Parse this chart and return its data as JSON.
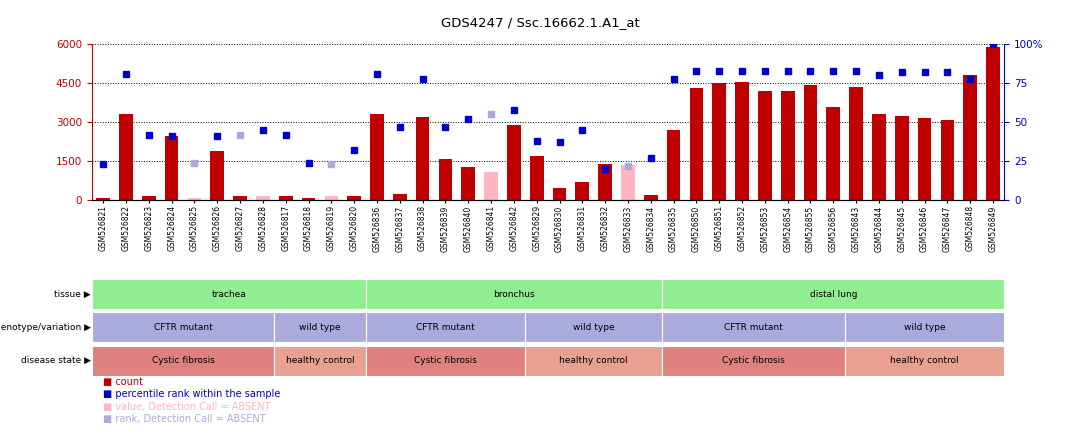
{
  "title": "GDS4247 / Ssc.16662.1.A1_at",
  "samples": [
    "GSM526821",
    "GSM526822",
    "GSM526823",
    "GSM526824",
    "GSM526825",
    "GSM526826",
    "GSM526827",
    "GSM526828",
    "GSM526817",
    "GSM526818",
    "GSM526819",
    "GSM526820",
    "GSM526836",
    "GSM526837",
    "GSM526838",
    "GSM526839",
    "GSM526840",
    "GSM526841",
    "GSM526842",
    "GSM526829",
    "GSM526830",
    "GSM526831",
    "GSM526832",
    "GSM526833",
    "GSM526834",
    "GSM526835",
    "GSM526850",
    "GSM526851",
    "GSM526852",
    "GSM526853",
    "GSM526854",
    "GSM526855",
    "GSM526856",
    "GSM526843",
    "GSM526844",
    "GSM526845",
    "GSM526846",
    "GSM526847",
    "GSM526848",
    "GSM526849"
  ],
  "counts": [
    60,
    3300,
    130,
    2450,
    60,
    1900,
    130,
    160,
    130,
    60,
    140,
    160,
    3300,
    230,
    3200,
    1560,
    1280,
    1060,
    2900,
    1700,
    450,
    700,
    1370,
    1350,
    200,
    2700,
    4300,
    4500,
    4550,
    4200,
    4200,
    4450,
    3600,
    4350,
    3300,
    3250,
    3150,
    3100,
    4800,
    5900
  ],
  "ranks_pct": [
    23,
    81,
    42,
    41,
    24,
    41,
    42,
    45,
    42,
    24,
    23,
    32,
    81,
    47,
    78,
    47,
    52,
    55,
    58,
    38,
    37,
    45,
    20,
    22,
    27,
    78,
    83,
    83,
    83,
    83,
    83,
    83,
    83,
    83,
    80,
    82,
    82,
    82,
    78,
    100
  ],
  "absent_count": [
    false,
    false,
    false,
    false,
    true,
    false,
    false,
    true,
    false,
    false,
    true,
    false,
    false,
    false,
    false,
    false,
    false,
    true,
    false,
    false,
    false,
    false,
    false,
    true,
    false,
    false,
    false,
    false,
    false,
    false,
    false,
    false,
    false,
    false,
    false,
    false,
    false,
    false,
    false,
    false
  ],
  "absent_rank": [
    false,
    false,
    false,
    false,
    true,
    false,
    true,
    false,
    false,
    false,
    true,
    false,
    false,
    false,
    false,
    false,
    false,
    true,
    false,
    false,
    false,
    false,
    false,
    true,
    false,
    false,
    false,
    false,
    false,
    false,
    false,
    false,
    false,
    false,
    false,
    false,
    false,
    false,
    false,
    false
  ],
  "ylim_left": [
    0,
    6000
  ],
  "ylim_right": [
    0,
    100
  ],
  "yticks_left": [
    0,
    1500,
    3000,
    4500,
    6000
  ],
  "yticks_right": [
    0,
    25,
    50,
    75,
    100
  ],
  "bar_color": "#C00000",
  "rank_color": "#0000CD",
  "absent_count_color": "#FFB6C1",
  "absent_rank_color": "#AAAADD",
  "tissue_groups": [
    {
      "label": "trachea",
      "start": 0,
      "end": 11,
      "color": "#90EE90"
    },
    {
      "label": "bronchus",
      "start": 12,
      "end": 24,
      "color": "#90EE90"
    },
    {
      "label": "distal lung",
      "start": 25,
      "end": 39,
      "color": "#90EE90"
    }
  ],
  "genotype_groups": [
    {
      "label": "CFTR mutant",
      "start": 0,
      "end": 7,
      "color": "#AAAADD"
    },
    {
      "label": "wild type",
      "start": 8,
      "end": 11,
      "color": "#AAAADD"
    },
    {
      "label": "CFTR mutant",
      "start": 12,
      "end": 18,
      "color": "#AAAADD"
    },
    {
      "label": "wild type",
      "start": 19,
      "end": 24,
      "color": "#AAAADD"
    },
    {
      "label": "CFTR mutant",
      "start": 25,
      "end": 32,
      "color": "#AAAADD"
    },
    {
      "label": "wild type",
      "start": 33,
      "end": 39,
      "color": "#AAAADD"
    }
  ],
  "disease_groups": [
    {
      "label": "Cystic fibrosis",
      "start": 0,
      "end": 7,
      "color": "#E08080"
    },
    {
      "label": "healthy control",
      "start": 8,
      "end": 11,
      "color": "#E8A090"
    },
    {
      "label": "Cystic fibrosis",
      "start": 12,
      "end": 18,
      "color": "#E08080"
    },
    {
      "label": "healthy control",
      "start": 19,
      "end": 24,
      "color": "#E8A090"
    },
    {
      "label": "Cystic fibrosis",
      "start": 25,
      "end": 32,
      "color": "#E08080"
    },
    {
      "label": "healthy control",
      "start": 33,
      "end": 39,
      "color": "#E8A090"
    }
  ],
  "legend_items": [
    {
      "label": "count",
      "color": "#C00000"
    },
    {
      "label": "percentile rank within the sample",
      "color": "#0000CD"
    },
    {
      "label": "value, Detection Call = ABSENT",
      "color": "#FFB6C1"
    },
    {
      "label": "rank, Detection Call = ABSENT",
      "color": "#AAAADD"
    }
  ]
}
